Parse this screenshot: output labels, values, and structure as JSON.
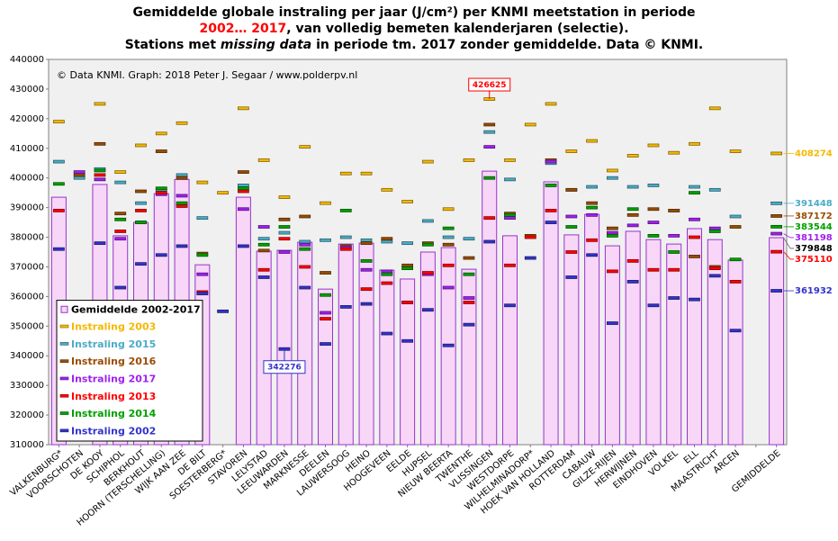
{
  "chart_data": {
    "type": "bar",
    "title": [
      [
        {
          "text": "Gemiddelde globale instraling per jaar (J/cm²) per KNMI meetstation in periode"
        }
      ],
      [
        {
          "text": "2002… 2017",
          "color": "#ff0000"
        },
        {
          "text": ", van volledig bemeten kalenderjaren (selectie)."
        }
      ],
      [
        {
          "text": "Stations met "
        },
        {
          "text": "missing data",
          "italic": true
        },
        {
          "text": " in periode tm. 2017 zonder gemiddelde. Data © KNMI."
        }
      ]
    ],
    "credit": "© Data KNMI. Graph: 2018 Peter J. Segaar / www.polderpv.nl",
    "categories": [
      "VALKENBURG*",
      "VOORSCHOTEN",
      "DE KOOY",
      "SCHIPHOL",
      "BERKHOUT",
      "HOORN (TERSCHELLING)",
      "WIJK AAN ZEE",
      "DE BILT",
      "SOESTERBERG*",
      "STAVOREN",
      "LELYSTAD",
      "LEEUWARDEN",
      "MARKNESSE",
      "DEELEN",
      "LAUWERSOOG",
      "HEINO",
      "HOOGEVEEN",
      "EELDE",
      "HUPSEL",
      "NIEUW BEERTA",
      "TWENTHE",
      "VLISSINGEN",
      "WESTDORPE",
      "WILHELMINADORP*",
      "HOEK VAN HOLLAND",
      "ROTTERDAM",
      "CABAUW",
      "GILZE-RIJEN",
      "HERWIJNEN",
      "EINDHOVEN",
      "VOLKEL",
      "ELL",
      "MAASTRICHT",
      "ARCEN",
      null,
      "GEMIDDELDE"
    ],
    "average": {
      "name": "Gemiddelde 2002-2017",
      "color": "#f7d6f7",
      "edge": "#9933cc",
      "values": [
        393500,
        null,
        397800,
        380500,
        385000,
        394700,
        399500,
        370700,
        null,
        393500,
        375300,
        375600,
        378300,
        362500,
        377700,
        378000,
        368900,
        365900,
        375000,
        376500,
        369200,
        402300,
        380500,
        null,
        398700,
        380800,
        387700,
        377100,
        382000,
        379200,
        377700,
        382900,
        379200,
        372300,
        null,
        379848
      ]
    },
    "series": [
      {
        "name": "Instraling 2003",
        "color": "#f5b800",
        "values": [
          419000,
          null,
          425000,
          402000,
          411000,
          415000,
          418500,
          398500,
          395000,
          423500,
          406000,
          393500,
          410500,
          391500,
          401500,
          401500,
          396000,
          392000,
          405500,
          389500,
          406000,
          426625,
          406000,
          418000,
          425000,
          409000,
          412500,
          402500,
          407500,
          411000,
          408500,
          411500,
          423500,
          409000,
          null,
          408274
        ]
      },
      {
        "name": "Instraling 2015",
        "color": "#4bacc6",
        "values": [
          405500,
          400000,
          403000,
          398500,
          391500,
          396000,
          401000,
          386500,
          null,
          397500,
          379500,
          381500,
          378500,
          379000,
          380000,
          379000,
          378500,
          378000,
          385500,
          380000,
          379500,
          415500,
          399500,
          null,
          405000,
          396000,
          397000,
          400000,
          397000,
          397500,
          389000,
          397000,
          396000,
          387000,
          null,
          391448
        ]
      },
      {
        "name": "Instraling 2016",
        "color": "#994c00",
        "values": [
          null,
          401000,
          411500,
          388000,
          395500,
          409000,
          400000,
          374500,
          null,
          402000,
          375500,
          386000,
          387000,
          368000,
          377000,
          378000,
          379500,
          370500,
          378000,
          377500,
          373000,
          418000,
          388000,
          380500,
          406000,
          396000,
          391500,
          383000,
          387500,
          389500,
          389000,
          373500,
          370000,
          383500,
          null,
          387172
        ]
      },
      {
        "name": "Instraling 2017",
        "color": "#a020f0",
        "values": [
          null,
          402000,
          399500,
          379500,
          385000,
          394500,
          394000,
          367500,
          null,
          389500,
          383500,
          375000,
          377500,
          354500,
          376500,
          369000,
          368500,
          358000,
          367500,
          363000,
          359500,
          410500,
          386500,
          null,
          405500,
          387000,
          387500,
          381500,
          384000,
          385000,
          380500,
          386000,
          383000,
          null,
          null,
          381198
        ]
      },
      {
        "name": "Instraling 2013",
        "color": "#ff0000",
        "values": [
          389000,
          null,
          401000,
          382000,
          389000,
          395000,
          390500,
          361500,
          null,
          395500,
          369000,
          379500,
          370000,
          352500,
          376000,
          362500,
          364500,
          358000,
          368000,
          370500,
          358000,
          386500,
          370500,
          380000,
          389000,
          375000,
          379000,
          368500,
          372000,
          369000,
          369000,
          380000,
          369500,
          365000,
          null,
          375110
        ]
      },
      {
        "name": "Instraling 2014",
        "color": "#00a000",
        "values": [
          398000,
          null,
          402500,
          386000,
          385000,
          396500,
          391500,
          374000,
          null,
          396500,
          377500,
          383500,
          376000,
          360500,
          389000,
          372000,
          367500,
          369500,
          377500,
          383000,
          367500,
          400000,
          387500,
          null,
          397500,
          383500,
          390000,
          380500,
          389500,
          380500,
          375000,
          395000,
          382000,
          372500,
          null,
          383544
        ]
      },
      {
        "name": "Instraling 2002",
        "color": "#3333cc",
        "values": [
          376000,
          null,
          378000,
          363000,
          371000,
          374000,
          377000,
          361000,
          355000,
          377000,
          366500,
          342276,
          363000,
          344000,
          356500,
          357500,
          347500,
          345000,
          355500,
          343500,
          350500,
          378500,
          357000,
          373000,
          385000,
          366500,
          374000,
          351000,
          365000,
          357000,
          359500,
          359000,
          367000,
          348500,
          null,
          361932
        ]
      }
    ],
    "ylim": [
      310000,
      440000
    ],
    "yticks": [
      310000,
      320000,
      330000,
      340000,
      350000,
      360000,
      370000,
      380000,
      390000,
      400000,
      410000,
      420000,
      430000,
      440000
    ],
    "grid": false,
    "legend": "lower left"
  }
}
